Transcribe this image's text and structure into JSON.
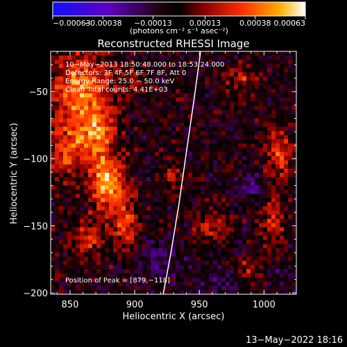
{
  "chart_data": {
    "type": "heatmap",
    "title": "Reconstructed RHESSI Image",
    "xlabel": "Heliocentric X (arcsec)",
    "ylabel": "Heliocentric Y (arcsec)",
    "xlim": [
      835,
      1025
    ],
    "ylim": [
      -201,
      -20
    ],
    "xticks": [
      850,
      900,
      950,
      1000
    ],
    "yticks": [
      -50,
      -100,
      -150,
      -200
    ],
    "xtick_labels": [
      "850",
      "900",
      "950",
      "1000"
    ],
    "ytick_labels": [
      "−50",
      "−100",
      "−150",
      "−200"
    ],
    "colorbar": {
      "min": -0.00063,
      "max": 0.00063,
      "ticks": [
        -0.00063,
        -0.00038,
        -0.00013,
        0.00013,
        0.00038,
        0.00063
      ],
      "tick_labels": [
        "−0.00063",
        "−0.00038",
        "−0.00013",
        "0.00013",
        "0.00038",
        "0.00063"
      ],
      "unit_label": "(photons cm⁻² s⁻¹ asec⁻²)"
    },
    "annotations": [
      "10−May−2013 18:50:48.000 to 18:53:24.000",
      "Detectors: 3F 4F 5F 6F 7F 8F, Att 0",
      "Energy Range: 25.0 − 50.0 keV",
      "Clean    Total counts: 4.41E+03"
    ],
    "peak_label": "Position of Peak = [879,−118]",
    "peak": [
      879,
      -118
    ],
    "limb_curve": {
      "x": [
        951,
        946,
        940,
        934,
        928,
        922
      ],
      "y": [
        -20,
        -55,
        -95,
        -135,
        -170,
        -201
      ]
    },
    "hot_spots": [
      {
        "x": 879,
        "y": -118,
        "v": 0.00058,
        "sx": 9,
        "sy": 14
      },
      {
        "x": 858,
        "y": -48,
        "v": 0.00046,
        "sx": 16,
        "sy": 20
      },
      {
        "x": 870,
        "y": -82,
        "v": 0.0004,
        "sx": 10,
        "sy": 14
      },
      {
        "x": 848,
        "y": -95,
        "v": 0.00032,
        "sx": 10,
        "sy": 15
      },
      {
        "x": 892,
        "y": -150,
        "v": 0.0003,
        "sx": 8,
        "sy": 12
      },
      {
        "x": 862,
        "y": -160,
        "v": 0.00026,
        "sx": 9,
        "sy": 10
      },
      {
        "x": 1012,
        "y": -95,
        "v": 0.00032,
        "sx": 7,
        "sy": 14
      },
      {
        "x": 1005,
        "y": -145,
        "v": 0.00028,
        "sx": 7,
        "sy": 12
      },
      {
        "x": 985,
        "y": -40,
        "v": 0.00022,
        "sx": 9,
        "sy": 7
      },
      {
        "x": 960,
        "y": -150,
        "v": 0.00022,
        "sx": 8,
        "sy": 9
      },
      {
        "x": 930,
        "y": -115,
        "v": 0.00018,
        "sx": 6,
        "sy": 9
      },
      {
        "x": 900,
        "y": -40,
        "v": 0.0002,
        "sx": 8,
        "sy": 6
      },
      {
        "x": 988,
        "y": -183,
        "v": 0.00016,
        "sx": 8,
        "sy": 6
      }
    ],
    "cold_spots": [
      {
        "x": 990,
        "y": -120,
        "v": -0.0002,
        "sx": 8,
        "sy": 7
      },
      {
        "x": 920,
        "y": -175,
        "v": -0.00018,
        "sx": 10,
        "sy": 10
      },
      {
        "x": 965,
        "y": -190,
        "v": -0.00016,
        "sx": 10,
        "sy": 6
      },
      {
        "x": 1015,
        "y": -185,
        "v": -0.00012,
        "sx": 6,
        "sy": 6
      }
    ]
  },
  "footer": {
    "timestamp": "13−May−2022 18:16"
  }
}
